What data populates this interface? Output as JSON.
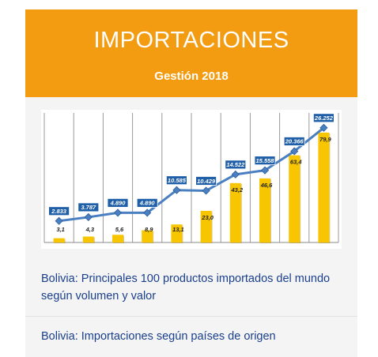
{
  "header": {
    "title": "IMPORTACIONES",
    "subtitle": "Gestión 2018"
  },
  "links": [
    {
      "label": "Bolivia: Principales 100 productos importados del mundo según volumen y valor"
    },
    {
      "label": "Bolivia: Importaciones según países de origen"
    }
  ],
  "colors": {
    "accent": "#f39c12",
    "bar": "#f7c600",
    "line": "#4a7fc1",
    "label_box": "#1f5fa8",
    "link": "#1a3f8c"
  },
  "chart_data": {
    "type": "bar",
    "categories": [
      "",
      "",
      "",
      "",
      "",
      "",
      "",
      "",
      "",
      ""
    ],
    "series": [
      {
        "values": [
          3.1,
          4.3,
          5.6,
          8.9,
          13.1,
          23.0,
          43.2,
          46.6,
          63.4,
          79.9
        ],
        "labels": [
          "3,1",
          "4,3",
          "5,6",
          "8,9",
          "13,1",
          "23,0",
          "43,2",
          "46,6",
          "63,4",
          "79,9"
        ]
      },
      {
        "type": "line",
        "values": [
          2833,
          3787,
          4890,
          4890,
          10585,
          10429,
          14522,
          15558,
          20366,
          26252
        ],
        "labels": [
          "2.833",
          "3.787",
          "4.890",
          "4.890",
          "10.585",
          "10.429",
          "14.522",
          "15.558",
          "20.366",
          "26.252"
        ]
      }
    ],
    "grid": true,
    "legend": "none"
  }
}
